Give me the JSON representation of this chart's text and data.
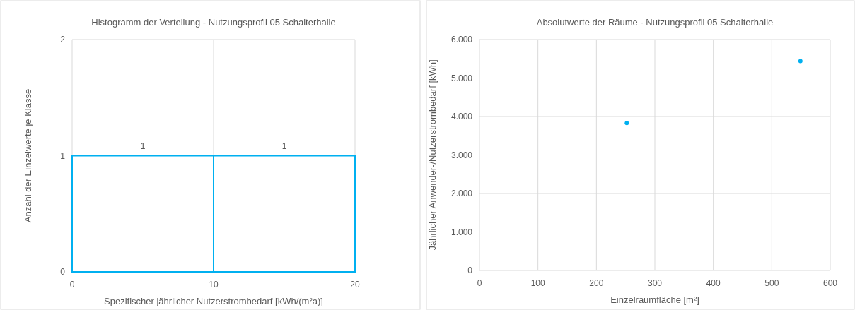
{
  "chart_data": [
    {
      "type": "histogram",
      "title": "Histogramm der Verteilung - Nutzungsprofil 05 Schalterhalle",
      "xlabel": "Spezifischer jährlicher Nutzerstrombedarf [kWh/(m²a)]",
      "ylabel": "Anzahl der Einzelwerte je Klasse",
      "bins": [
        0,
        10,
        20
      ],
      "values": [
        1,
        1
      ],
      "color": "#00b0f0",
      "xlim": [
        0,
        20
      ],
      "xticks": [
        0,
        10,
        20
      ],
      "ylim": [
        0,
        2
      ],
      "yticks": [
        0,
        1,
        2
      ],
      "grid": true,
      "data_labels": true
    },
    {
      "type": "scatter",
      "title": "Absolutwerte der Räume - Nutzungsprofil 05 Schalterhalle",
      "xlabel": "Einzelraumfläche [m²]",
      "ylabel": "Jährlicher Anwender-/Nutzerstrombedarf [kWh]",
      "x": [
        252,
        549
      ],
      "values": [
        3830,
        5440
      ],
      "color": "#00b0f0",
      "marker": "circle",
      "xlim": [
        0,
        600
      ],
      "xticks": [
        0,
        100,
        200,
        300,
        400,
        500,
        600
      ],
      "ylim": [
        0,
        6000
      ],
      "yticks": [
        {
          "value": 0,
          "label": "0"
        },
        {
          "value": 1000,
          "label": "1.000"
        },
        {
          "value": 2000,
          "label": "2.000"
        },
        {
          "value": 3000,
          "label": "3.000"
        },
        {
          "value": 4000,
          "label": "4.000"
        },
        {
          "value": 5000,
          "label": "5.000"
        },
        {
          "value": 6000,
          "label": "6.000"
        }
      ],
      "grid": true
    }
  ]
}
